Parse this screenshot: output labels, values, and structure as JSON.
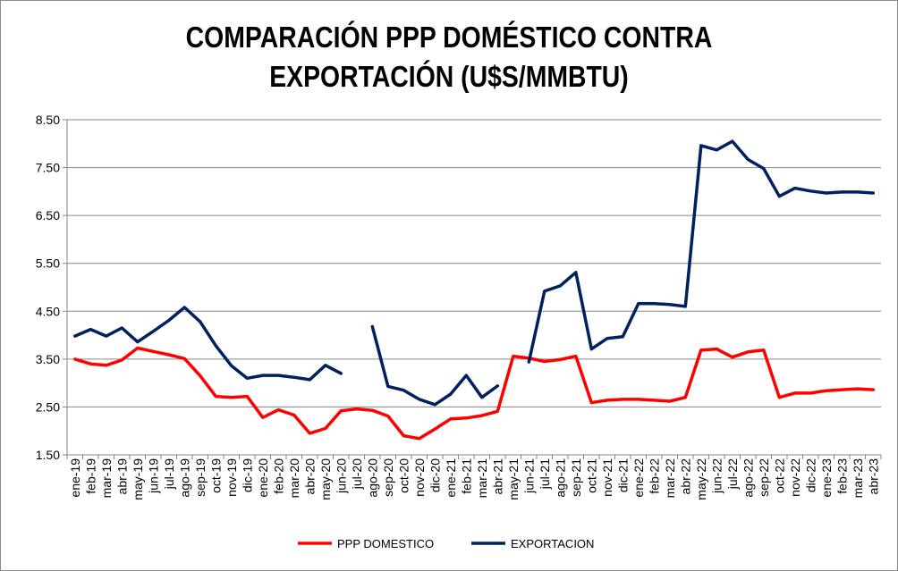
{
  "chart_data": {
    "type": "line",
    "title_lines": [
      "COMPARACIÓN PPP DOMÉSTICO CONTRA",
      "EXPORTACIÓN (U$S/MMBTU)"
    ],
    "ylim": [
      1.5,
      8.5
    ],
    "yticks": [
      "1.50",
      "2.50",
      "3.50",
      "4.50",
      "5.50",
      "6.50",
      "7.50",
      "8.50"
    ],
    "grid": true,
    "legend_position": "bottom",
    "categories": [
      "ene-19",
      "feb-19",
      "mar-19",
      "abr-19",
      "may-19",
      "jun-19",
      "jul-19",
      "ago-19",
      "sep-19",
      "oct-19",
      "nov-19",
      "dic-19",
      "ene-20",
      "feb-20",
      "mar-20",
      "abr-20",
      "may-20",
      "jun-20",
      "jul-20",
      "ago-20",
      "sep-20",
      "oct-20",
      "nov-20",
      "dic-20",
      "ene-21",
      "feb-21",
      "mar-21",
      "abr-21",
      "may-21",
      "jun-21",
      "jul-21",
      "ago-21",
      "sep-21",
      "oct-21",
      "nov-21",
      "dic-21",
      "ene-22",
      "feb-22",
      "mar-22",
      "abr-22",
      "may-22",
      "jun-22",
      "jul-22",
      "ago-22",
      "sep-22",
      "oct-22",
      "nov-22",
      "dic-22",
      "ene-23",
      "feb-23",
      "mar-23",
      "abr-23"
    ],
    "series": [
      {
        "name": "PPP DOMESTICO",
        "color": "#ff0000",
        "values": [
          3.5,
          3.4,
          3.37,
          3.48,
          3.73,
          3.66,
          3.59,
          3.51,
          3.15,
          2.72,
          2.7,
          2.72,
          2.28,
          2.44,
          2.33,
          1.95,
          2.05,
          2.42,
          2.46,
          2.43,
          2.31,
          1.9,
          1.84,
          2.04,
          2.25,
          2.27,
          2.32,
          2.41,
          3.56,
          3.52,
          3.45,
          3.49,
          3.56,
          2.59,
          2.64,
          2.66,
          2.66,
          2.64,
          2.62,
          2.7,
          3.69,
          3.71,
          3.54,
          3.65,
          3.69,
          2.7,
          2.79,
          2.79,
          2.84,
          2.86,
          2.88,
          2.86
        ]
      },
      {
        "name": "EXPORTACION",
        "color": "#002060",
        "values": [
          3.98,
          4.12,
          3.98,
          4.15,
          3.86,
          4.08,
          4.31,
          4.58,
          4.28,
          3.78,
          3.36,
          3.1,
          3.16,
          3.16,
          3.12,
          3.07,
          3.37,
          3.2,
          null,
          4.18,
          2.93,
          2.85,
          2.66,
          2.55,
          2.77,
          3.16,
          2.7,
          2.94,
          null,
          3.44,
          4.92,
          5.03,
          5.31,
          3.71,
          3.93,
          3.97,
          4.66,
          4.66,
          4.64,
          4.6,
          7.96,
          7.87,
          8.05,
          7.67,
          7.48,
          6.9,
          7.07,
          7.01,
          6.97,
          6.99,
          6.99,
          6.97
        ]
      }
    ]
  }
}
